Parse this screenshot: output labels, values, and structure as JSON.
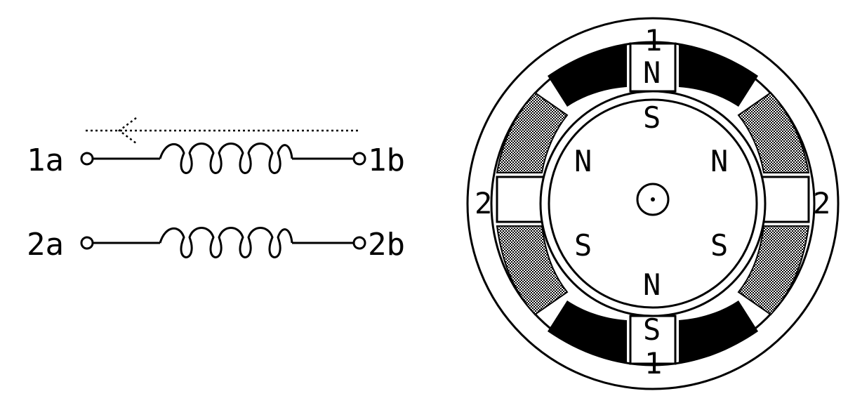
{
  "coils": {
    "coil1": {
      "left": "1a",
      "right": "1b"
    },
    "coil2": {
      "left": "2a",
      "right": "2b"
    }
  },
  "motor": {
    "stator_top_number": "1",
    "stator_bottom_number": "1",
    "stator_left_number": "2",
    "stator_right_number": "2",
    "stator_top_pole": "N",
    "stator_bottom_pole": "S",
    "rotor_top_pole": "S",
    "rotor_bottom_pole": "N",
    "rotor_upper_left_pole": "N",
    "rotor_upper_right_pole": "N",
    "rotor_lower_left_pole": "S",
    "rotor_lower_right_pole": "S"
  },
  "colors": {
    "ink": "#000000",
    "energized_winding": "#000000",
    "idle_winding_hatch": "#8a8a8a",
    "background": "#ffffff"
  }
}
